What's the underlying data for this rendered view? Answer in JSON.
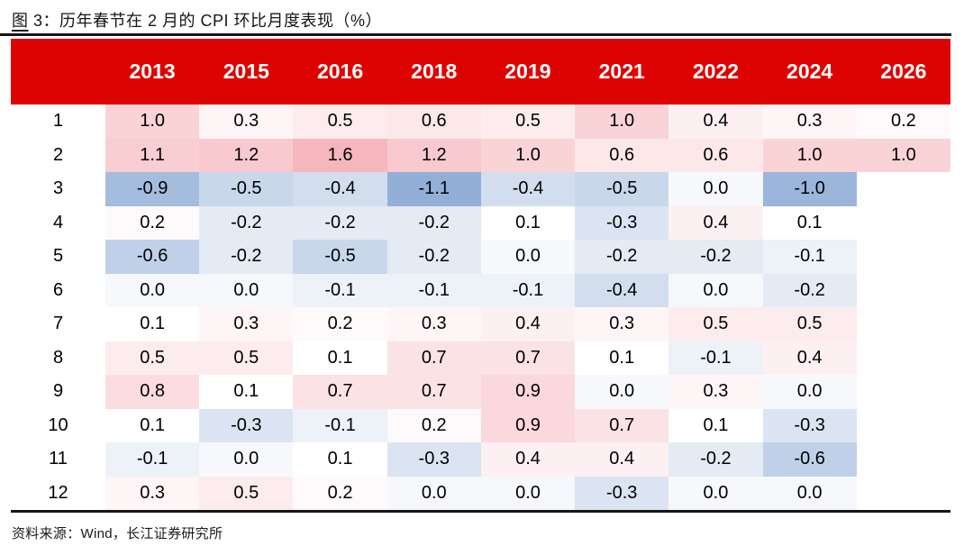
{
  "title": {
    "prefix": "图",
    "rest": " 3：历年春节在 2 月的 CPI 环比月度表现（%）"
  },
  "source_note": "资料来源：Wind，长江证券研究所",
  "theme": {
    "header_bg": "#DE0303",
    "header_text": "#FFFFFF",
    "rule_color": "#161616",
    "positive_color": "#F6B6BD",
    "negative_color": "#92AFD7",
    "neutral_color": "#FFFFFF"
  },
  "chart_data": {
    "type": "heatmap",
    "figure_label": "图 3",
    "title": "历年春节在 2 月的 CPI 环比月度表现（%）",
    "unit": "%",
    "row_label_header": "",
    "columns": [
      "2013",
      "2015",
      "2016",
      "2018",
      "2019",
      "2021",
      "2022",
      "2024",
      "2026"
    ],
    "rows": [
      "1",
      "2",
      "3",
      "4",
      "5",
      "6",
      "7",
      "8",
      "9",
      "10",
      "11",
      "12"
    ],
    "values": [
      [
        1.0,
        0.3,
        0.5,
        0.6,
        0.5,
        1.0,
        0.4,
        0.3,
        0.2
      ],
      [
        1.1,
        1.2,
        1.6,
        1.2,
        1.0,
        0.6,
        0.6,
        1.0,
        1.0
      ],
      [
        -0.9,
        -0.5,
        -0.4,
        -1.1,
        -0.4,
        -0.5,
        0.0,
        -1.0,
        null
      ],
      [
        0.2,
        -0.2,
        -0.2,
        -0.2,
        0.1,
        -0.3,
        0.4,
        0.1,
        null
      ],
      [
        -0.6,
        -0.2,
        -0.5,
        -0.2,
        0.0,
        -0.2,
        -0.2,
        -0.1,
        null
      ],
      [
        0.0,
        0.0,
        -0.1,
        -0.1,
        -0.1,
        -0.4,
        0.0,
        -0.2,
        null
      ],
      [
        0.1,
        0.3,
        0.2,
        0.3,
        0.4,
        0.3,
        0.5,
        0.5,
        null
      ],
      [
        0.5,
        0.5,
        0.1,
        0.7,
        0.7,
        0.1,
        -0.1,
        0.4,
        null
      ],
      [
        0.8,
        0.1,
        0.7,
        0.7,
        0.9,
        0.0,
        0.3,
        0.0,
        null
      ],
      [
        0.1,
        -0.3,
        -0.1,
        0.2,
        0.9,
        0.7,
        0.1,
        -0.3,
        null
      ],
      [
        -0.1,
        0.0,
        0.1,
        -0.3,
        0.4,
        0.4,
        -0.2,
        -0.6,
        null
      ],
      [
        0.3,
        0.5,
        0.2,
        0.0,
        0.0,
        -0.3,
        0.0,
        0.0,
        null
      ]
    ],
    "color_scale": {
      "midpoint": 0.1,
      "max": 1.6,
      "min": -1.1,
      "positive_color": "#F6B6BD",
      "negative_color": "#92AFD7",
      "neutral_color": "#FFFFFF"
    },
    "source": "Wind，长江证券研究所"
  }
}
